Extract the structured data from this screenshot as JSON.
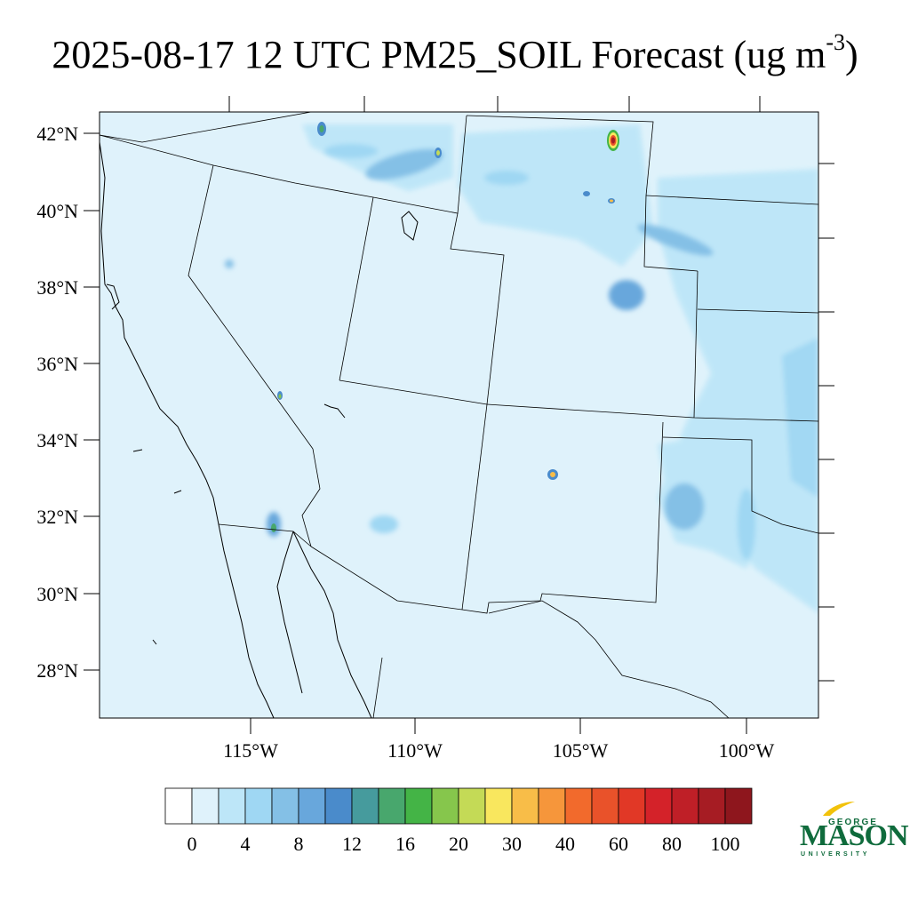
{
  "title": {
    "text": "2025-08-17 12 UTC PM25_SOIL Forecast (ug m",
    "sup": "-3",
    "close": ")"
  },
  "map": {
    "lat_labels": [
      "42°N",
      "40°N",
      "38°N",
      "36°N",
      "34°N",
      "32°N",
      "30°N",
      "28°N"
    ],
    "lon_labels": [
      "115°W",
      "110°W",
      "105°W",
      "100°W"
    ],
    "background_color": "#dff2fb",
    "hotspots": [
      {
        "name": "wyoming-fire",
        "level": 60
      },
      {
        "name": "idaho-fire",
        "level": 14
      },
      {
        "name": "new-mexico-fire",
        "level": 30
      },
      {
        "name": "colorado-dust",
        "level": 10
      },
      {
        "name": "baja-border",
        "level": 16
      }
    ]
  },
  "colorbar": {
    "colors": [
      "#ffffff",
      "#dff2fb",
      "#bde6f8",
      "#9fd7f3",
      "#84c0e6",
      "#68a7dc",
      "#4a8bcb",
      "#469b9d",
      "#48a76d",
      "#44b446",
      "#86c64c",
      "#c4da56",
      "#f9e75e",
      "#f8bd48",
      "#f6963b",
      "#f26a2c",
      "#e9522a",
      "#e13826",
      "#d42229",
      "#bf1f27",
      "#a61c23",
      "#8e161d"
    ],
    "labels": [
      "0",
      "4",
      "8",
      "12",
      "16",
      "20",
      "30",
      "40",
      "60",
      "80",
      "100"
    ]
  },
  "logo": {
    "line1": "GEORGE",
    "line2": "MASON",
    "line3": "UNIVERSITY",
    "color": "#0f6b3c",
    "accent": "#f2c20a"
  }
}
